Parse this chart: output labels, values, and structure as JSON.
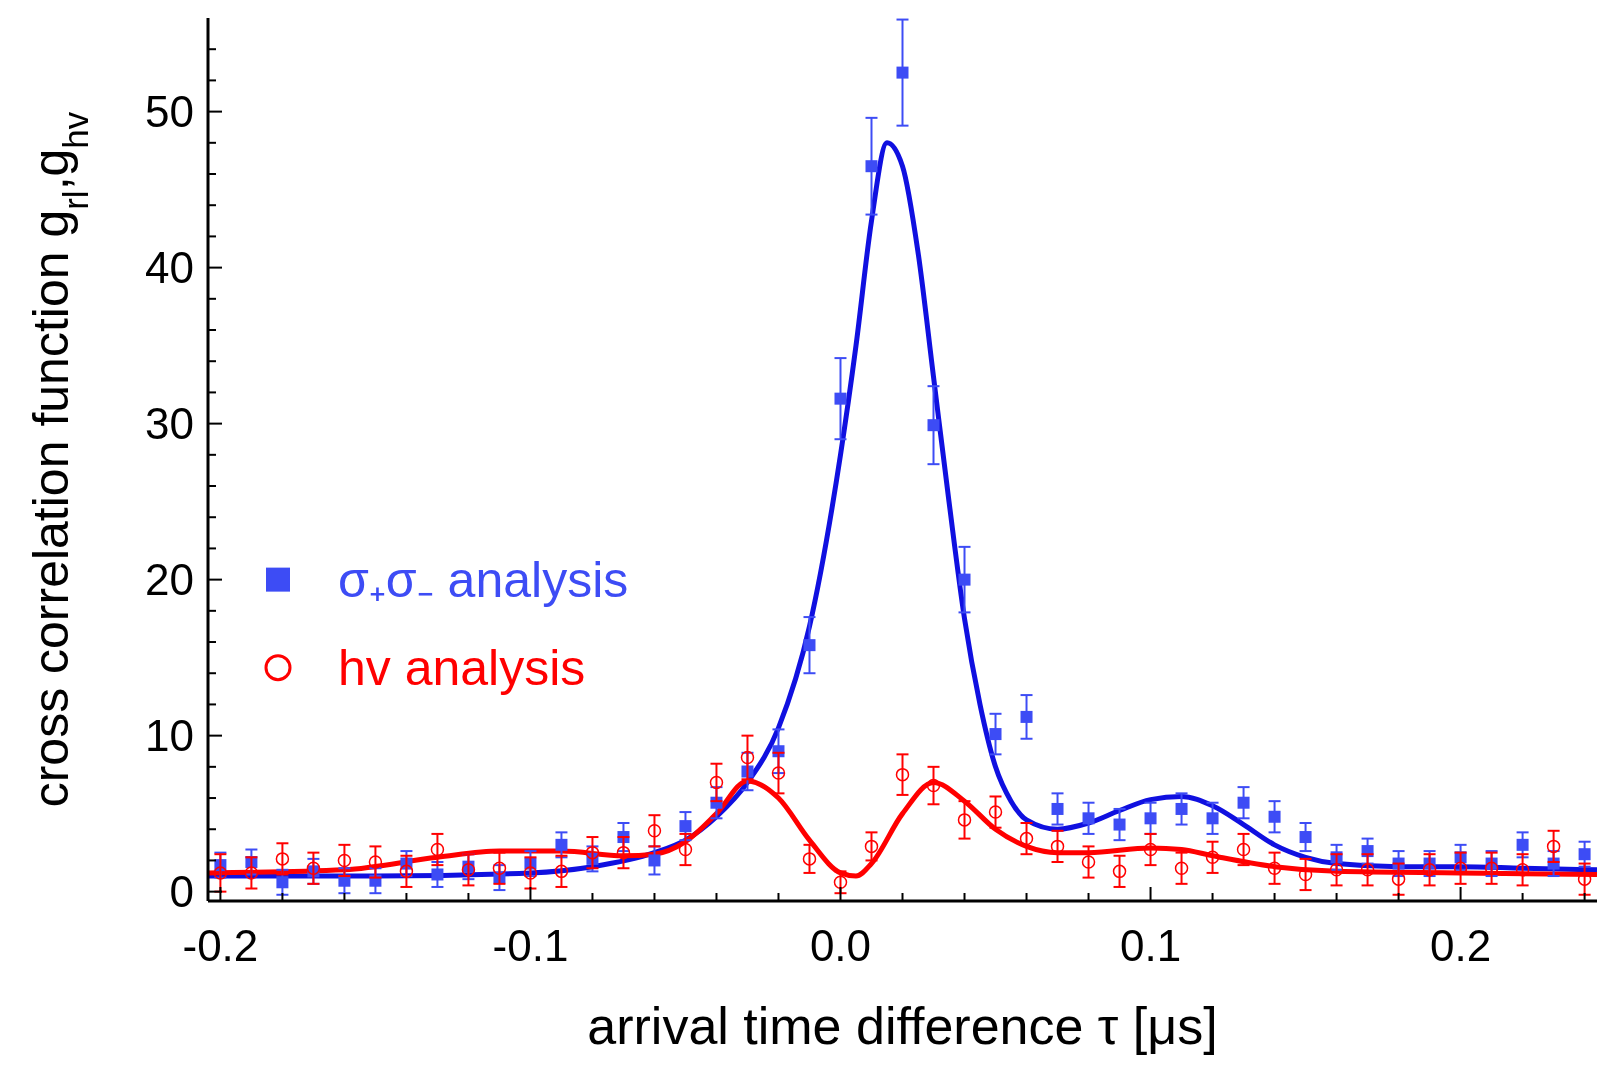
{
  "chart_data": {
    "type": "scatter",
    "xlabel": "arrival time difference τ [μs]",
    "ylabel": "cross correlation function g$_{rl}$,g$_{hv}$",
    "xlim": [
      -0.204,
      0.244
    ],
    "ylim": [
      -0.6,
      56
    ],
    "xticks": [
      {
        "value": -0.2,
        "label": "-0.2"
      },
      {
        "value": -0.18,
        "label": null
      },
      {
        "value": -0.16,
        "label": null
      },
      {
        "value": -0.14,
        "label": null
      },
      {
        "value": -0.12,
        "label": null
      },
      {
        "value": -0.1,
        "label": "-0.1"
      },
      {
        "value": -0.08,
        "label": null
      },
      {
        "value": -0.06,
        "label": null
      },
      {
        "value": -0.04,
        "label": null
      },
      {
        "value": -0.02,
        "label": null
      },
      {
        "value": 0,
        "label": "0.0"
      },
      {
        "value": 0.02,
        "label": null
      },
      {
        "value": 0.04,
        "label": null
      },
      {
        "value": 0.06,
        "label": null
      },
      {
        "value": 0.08,
        "label": null
      },
      {
        "value": 0.1,
        "label": "0.1"
      },
      {
        "value": 0.12,
        "label": null
      },
      {
        "value": 0.14,
        "label": null
      },
      {
        "value": 0.16,
        "label": null
      },
      {
        "value": 0.18,
        "label": null
      },
      {
        "value": 0.2,
        "label": "0.2"
      },
      {
        "value": 0.22,
        "label": null
      },
      {
        "value": 0.24,
        "label": null
      }
    ],
    "yticks": [
      0,
      {
        "value": 2,
        "label": null
      },
      {
        "value": 4,
        "label": null
      },
      {
        "value": 6,
        "label": null
      },
      {
        "value": 8,
        "label": null
      },
      10,
      {
        "value": 12,
        "label": null
      },
      {
        "value": 14,
        "label": null
      },
      {
        "value": 16,
        "label": null
      },
      {
        "value": 18,
        "label": null
      },
      20,
      {
        "value": 22,
        "label": null
      },
      {
        "value": 24,
        "label": null
      },
      {
        "value": 26,
        "label": null
      },
      {
        "value": 28,
        "label": null
      },
      30,
      {
        "value": 32,
        "label": null
      },
      {
        "value": 34,
        "label": null
      },
      {
        "value": 36,
        "label": null
      },
      {
        "value": 38,
        "label": null
      },
      40,
      {
        "value": 42,
        "label": null
      },
      {
        "value": 44,
        "label": null
      },
      {
        "value": 46,
        "label": null
      },
      {
        "value": 48,
        "label": null
      },
      50,
      {
        "value": 52,
        "label": null
      },
      {
        "value": 54,
        "label": null
      }
    ],
    "grid": false,
    "legend": "left",
    "series": [
      {
        "type": "line",
        "color": "#1010e0",
        "x": [
          -0.204,
          -0.15,
          -0.1,
          -0.08,
          -0.06,
          -0.05,
          -0.04,
          -0.03,
          -0.02,
          -0.01,
          0.0,
          0.005,
          0.01,
          0.015,
          0.02,
          0.025,
          0.03,
          0.035,
          0.04,
          0.045,
          0.05,
          0.055,
          0.06,
          0.07,
          0.08,
          0.09,
          0.1,
          0.11,
          0.12,
          0.13,
          0.14,
          0.15,
          0.16,
          0.18,
          0.2,
          0.22,
          0.244
        ],
        "values": [
          1.0,
          1.0,
          1.2,
          1.6,
          2.5,
          3.3,
          4.8,
          7.0,
          10.5,
          17,
          28,
          35,
          43,
          48,
          46.5,
          41,
          33,
          25,
          17.5,
          12,
          8,
          5.8,
          4.6,
          4.0,
          4.4,
          5.2,
          5.9,
          6.1,
          5.5,
          4.3,
          3.0,
          2.2,
          1.8,
          1.6,
          1.6,
          1.5,
          1.4
        ]
      },
      {
        "type": "line",
        "color": "#ff0000",
        "x": [
          -0.204,
          -0.16,
          -0.13,
          -0.11,
          -0.09,
          -0.07,
          -0.06,
          -0.05,
          -0.04,
          -0.03,
          -0.02,
          -0.01,
          0.0,
          0.005,
          0.01,
          0.02,
          0.03,
          0.04,
          0.05,
          0.06,
          0.07,
          0.08,
          0.1,
          0.11,
          0.12,
          0.14,
          0.16,
          0.2,
          0.244
        ],
        "values": [
          1.2,
          1.4,
          2.2,
          2.6,
          2.6,
          2.3,
          2.4,
          3.2,
          5.0,
          7.1,
          6.0,
          3.3,
          1.2,
          1.0,
          1.8,
          5.0,
          7.0,
          5.8,
          4.0,
          2.9,
          2.5,
          2.5,
          2.8,
          2.7,
          2.3,
          1.6,
          1.3,
          1.2,
          1.1
        ]
      },
      {
        "name": "σ₊σ₋ analysis",
        "color": "#3d4cf5",
        "marker": "square",
        "x": [
          -0.2,
          -0.19,
          -0.18,
          -0.17,
          -0.16,
          -0.15,
          -0.14,
          -0.13,
          -0.12,
          -0.11,
          -0.1,
          -0.09,
          -0.08,
          -0.07,
          -0.06,
          -0.05,
          -0.04,
          -0.03,
          -0.02,
          -0.01,
          0.0,
          0.01,
          0.02,
          0.03,
          0.04,
          0.05,
          0.06,
          0.07,
          0.08,
          0.09,
          0.1,
          0.11,
          0.12,
          0.13,
          0.14,
          0.15,
          0.16,
          0.17,
          0.18,
          0.19,
          0.2,
          0.21,
          0.22,
          0.23,
          0.24
        ],
        "values": [
          1.7,
          1.9,
          0.6,
          1.3,
          0.7,
          0.7,
          1.8,
          1.1,
          1.6,
          0.9,
          1.8,
          3.0,
          2.1,
          3.5,
          2.0,
          4.2,
          5.7,
          7.7,
          9.0,
          15.8,
          31.6,
          46.5,
          52.5,
          29.9,
          20.0,
          10.1,
          11.2,
          5.3,
          4.7,
          4.3,
          4.7,
          5.3,
          4.7,
          5.7,
          4.8,
          3.5,
          2.2,
          2.6,
          1.8,
          1.8,
          2.2,
          1.8,
          3.0,
          1.8,
          2.4
        ],
        "errors": [
          0.8,
          0.8,
          0.8,
          0.8,
          0.8,
          0.8,
          0.8,
          0.8,
          0.8,
          0.8,
          0.8,
          0.8,
          0.8,
          0.9,
          0.9,
          0.9,
          1.0,
          1.2,
          1.4,
          1.8,
          2.6,
          3.1,
          3.4,
          2.5,
          2.1,
          1.3,
          1.4,
          1.0,
          1.0,
          1.0,
          1.0,
          1.0,
          1.0,
          1.0,
          1.0,
          0.9,
          0.8,
          0.8,
          0.8,
          0.8,
          0.8,
          0.8,
          0.8,
          0.8,
          0.8
        ]
      },
      {
        "name": "hv analysis",
        "color": "#ff0000",
        "marker": "circle",
        "x": [
          -0.2,
          -0.19,
          -0.18,
          -0.17,
          -0.16,
          -0.15,
          -0.14,
          -0.13,
          -0.12,
          -0.11,
          -0.1,
          -0.09,
          -0.08,
          -0.07,
          -0.06,
          -0.05,
          -0.04,
          -0.03,
          -0.02,
          -0.01,
          0.0,
          0.01,
          0.02,
          0.03,
          0.04,
          0.05,
          0.06,
          0.07,
          0.08,
          0.09,
          0.1,
          0.11,
          0.12,
          0.13,
          0.14,
          0.15,
          0.16,
          0.17,
          0.18,
          0.19,
          0.2,
          0.21,
          0.22,
          0.23,
          0.24
        ],
        "values": [
          1.2,
          1.2,
          2.1,
          1.5,
          2.0,
          1.9,
          1.3,
          2.7,
          1.4,
          1.5,
          1.2,
          1.3,
          2.5,
          2.5,
          3.9,
          2.7,
          7.0,
          8.6,
          7.6,
          2.1,
          0.6,
          2.9,
          7.5,
          6.8,
          4.6,
          5.1,
          3.4,
          2.9,
          1.9,
          1.3,
          2.7,
          1.5,
          2.2,
          2.7,
          1.5,
          1.1,
          1.4,
          1.4,
          0.8,
          1.4,
          1.5,
          1.5,
          1.4,
          2.9,
          0.8
        ],
        "errors": [
          1.2,
          1.0,
          1.0,
          1.0,
          1.0,
          1.0,
          1.0,
          1.0,
          1.0,
          1.0,
          1.0,
          1.0,
          1.0,
          1.0,
          1.0,
          1.0,
          1.2,
          1.4,
          1.3,
          0.9,
          0.7,
          0.9,
          1.3,
          1.2,
          1.2,
          1.0,
          1.0,
          1.0,
          1.0,
          1.0,
          1.0,
          1.0,
          1.0,
          1.0,
          1.0,
          1.0,
          1.0,
          1.0,
          1.0,
          1.0,
          1.0,
          1.0,
          1.0,
          1.0,
          1.0
        ]
      }
    ]
  }
}
